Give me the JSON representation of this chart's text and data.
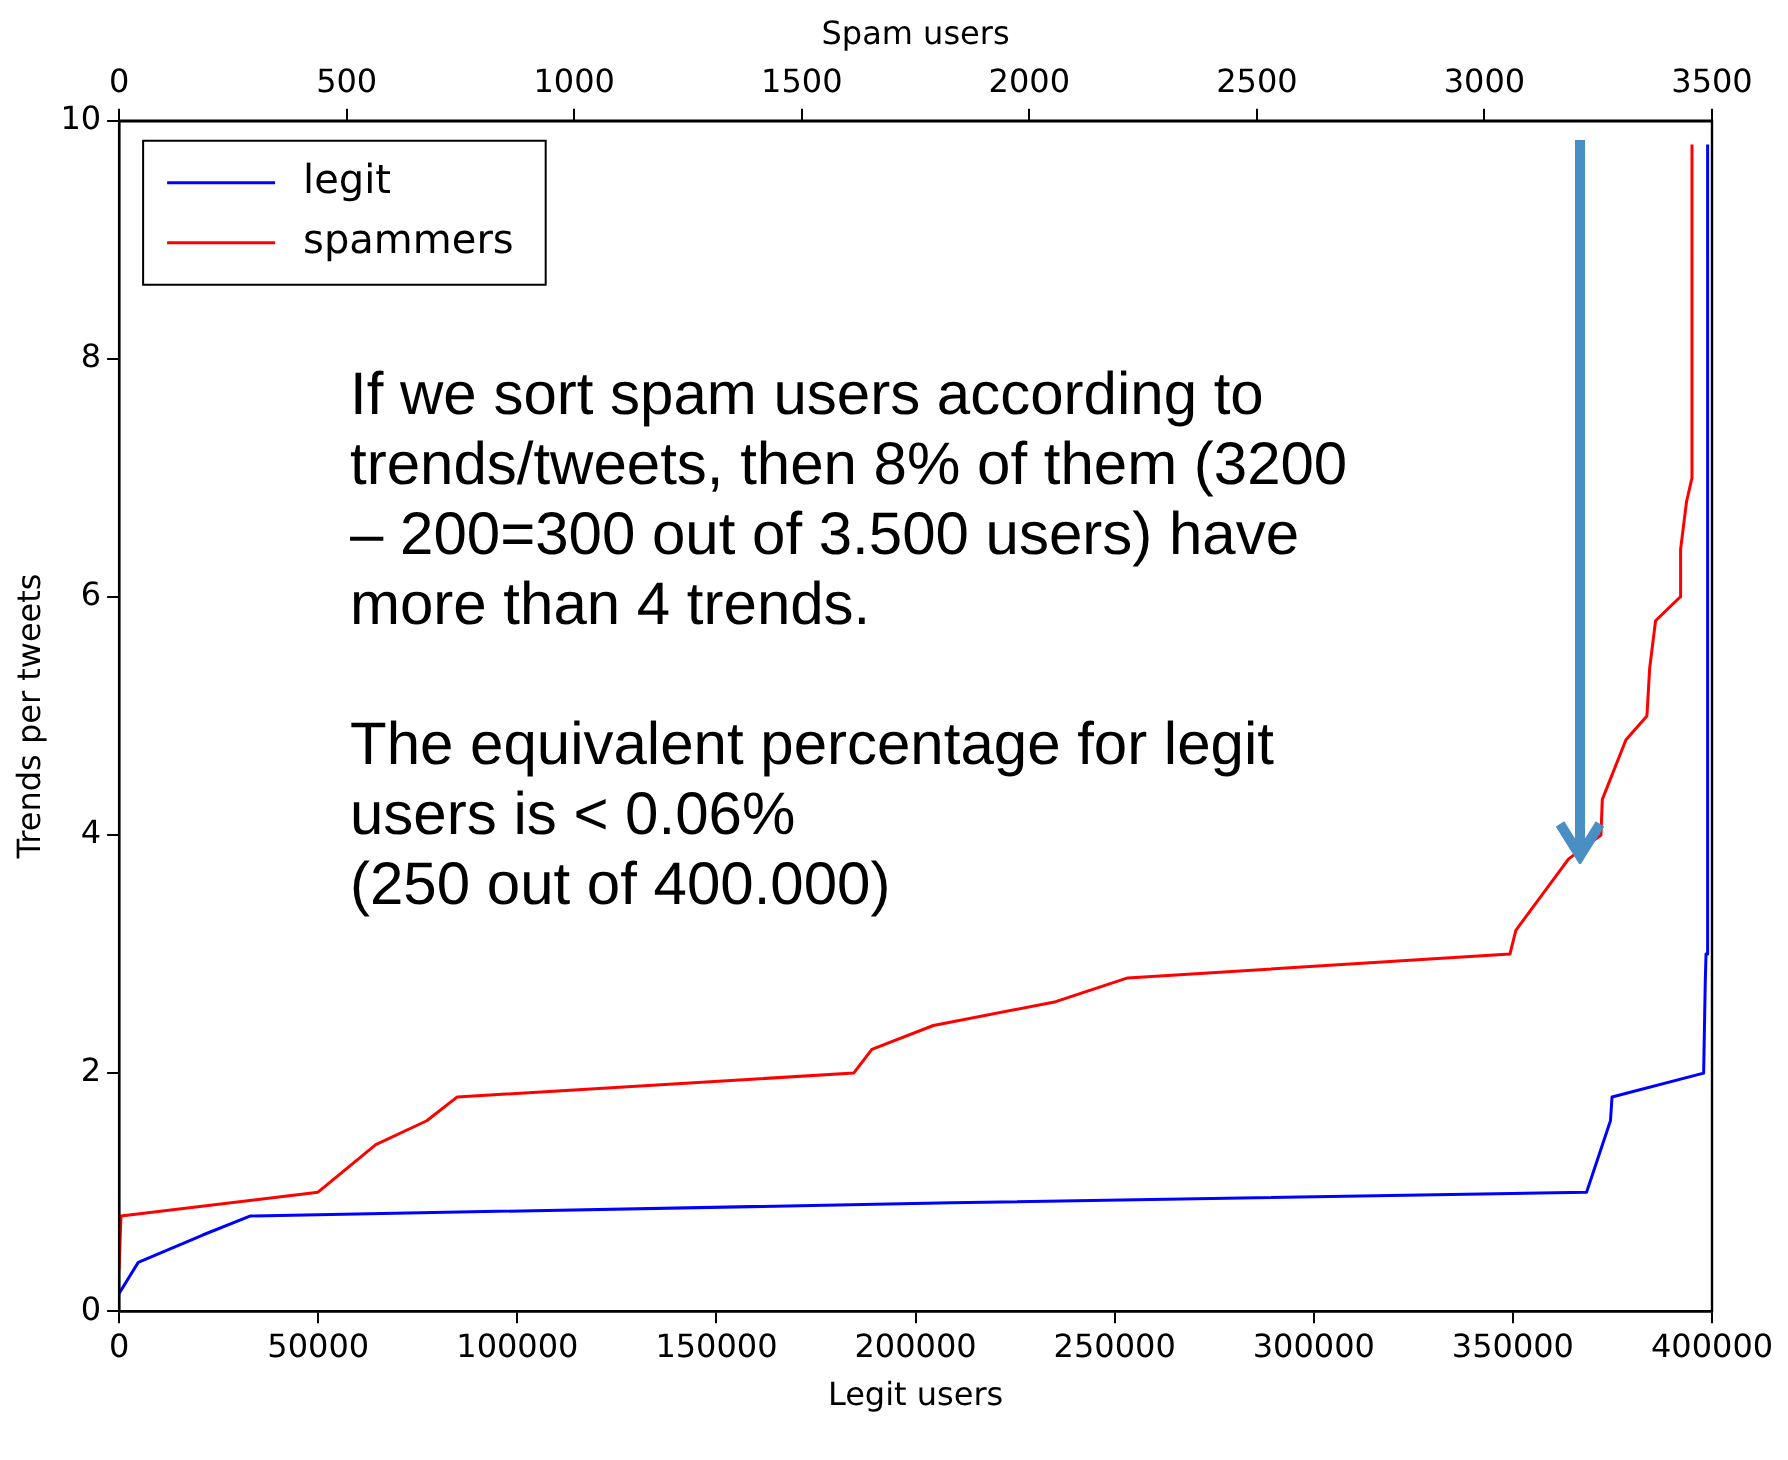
{
  "chart_data": {
    "type": "line",
    "xlabel": "Legit users",
    "x2label": "Spam users",
    "ylabel": "Trends per tweets",
    "xlim": [
      0,
      400000
    ],
    "xticks": [
      0,
      50000,
      100000,
      150000,
      200000,
      250000,
      300000,
      350000,
      400000
    ],
    "x2lim": [
      0,
      3500
    ],
    "x2ticks": [
      0,
      500,
      1000,
      1500,
      2000,
      2500,
      3000,
      3500
    ],
    "ylim": [
      0,
      10
    ],
    "yticks": [
      0,
      2,
      4,
      6,
      8,
      10
    ],
    "grid": false,
    "legend": "top left",
    "marker": "none",
    "line_style": "solid",
    "annotations": [
      "If we sort spam users according to\ntrends/tweets, then 8% of them (3200\n– 200=300 out of 3.500 users) have\nmore than 4 trends.",
      "The equivalent percentage for legit\nusers is < 0.06%\n(250 out of 400.000)"
    ],
    "series": [
      {
        "name": "legit",
        "color": "#0000ff",
        "x": [
          0,
          4800,
          21000,
          33000,
          209000,
          368500,
          374500,
          374900,
          397900,
          398300,
          398500,
          398900
        ],
        "values": [
          0.15,
          0.41,
          0.64,
          0.8,
          0.91,
          1.0,
          1.6,
          1.8,
          2.0,
          2.75,
          3.0,
          9.8
        ]
      },
      {
        "name": "spammers",
        "color": "#ff0000",
        "axis": "x2",
        "x": [
          0,
          4,
          437,
          564,
          676,
          743,
          1614,
          1654,
          1789,
          2058,
          2216,
          3056,
          3069,
          3185,
          3256,
          3259,
          3311,
          3357,
          3363,
          3376,
          3430,
          3431,
          3444,
          3456,
          3456
        ],
        "values": [
          0.35,
          0.8,
          1.0,
          1.4,
          1.6,
          1.8,
          2.0,
          2.2,
          2.4,
          2.6,
          2.8,
          3.0,
          3.2,
          3.8,
          4.0,
          4.3,
          4.8,
          5.0,
          5.4,
          5.8,
          6.0,
          6.4,
          6.8,
          7.0,
          9.8
        ]
      }
    ]
  }
}
